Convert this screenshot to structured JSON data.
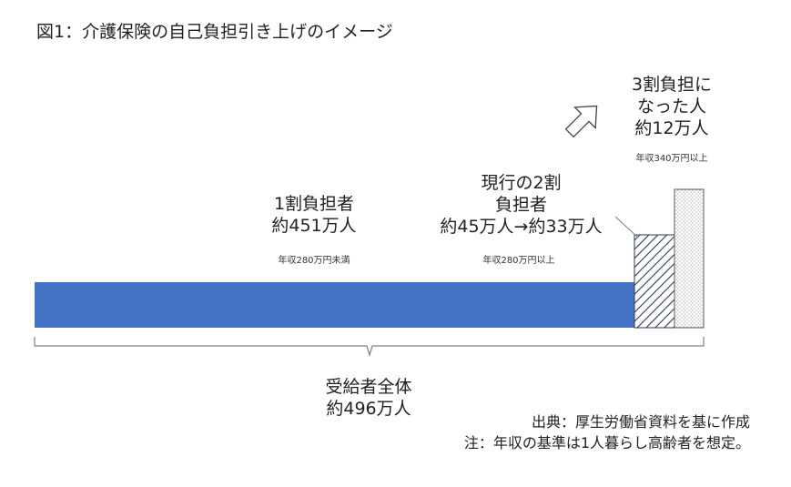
{
  "title": "図1：介護保険の自己負担引き上げのイメージ",
  "groups": {
    "one_wari": {
      "lines": [
        "1割負担者",
        "約451万人"
      ],
      "sub": "年収280万円未満"
    },
    "two_wari": {
      "lines": [
        "現行の2割",
        "負担者",
        "約45万人→約33万人"
      ],
      "sub": "年収280万円以上"
    },
    "three_wari": {
      "lines": [
        "3割負担に",
        "なった人",
        "約12万人"
      ],
      "sub": "年収340万円以上"
    },
    "total": {
      "lines": [
        "受給者全体",
        "約496万人"
      ]
    }
  },
  "notes": {
    "source": "出典：厚生労働省資料を基に作成",
    "note": "注：年収の基準は1人暮らし高齢者を想定。"
  },
  "colors": {
    "blue_bar": "#4472c4",
    "hatch": "#2f3b52",
    "dots": "#8a8a8a",
    "line": "#7f7f7f"
  }
}
